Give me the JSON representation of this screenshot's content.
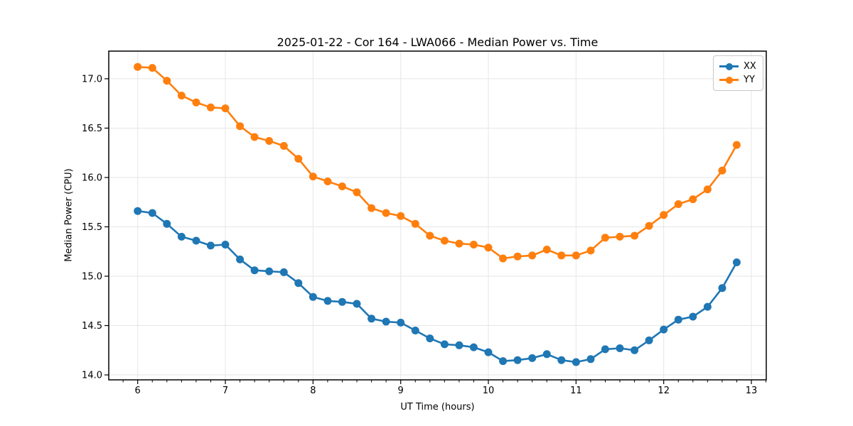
{
  "chart_data": {
    "type": "line",
    "title": "2025-01-22 - Cor 164 - LWA066 - Median Power vs. Time",
    "xlabel": "UT Time (hours)",
    "ylabel": "Median Power (CPU)",
    "x": [
      6.0,
      6.167,
      6.333,
      6.5,
      6.667,
      6.833,
      7.0,
      7.167,
      7.333,
      7.5,
      7.667,
      7.833,
      8.0,
      8.167,
      8.333,
      8.5,
      8.667,
      8.833,
      9.0,
      9.167,
      9.333,
      9.5,
      9.667,
      9.833,
      10.0,
      10.167,
      10.333,
      10.5,
      10.667,
      10.833,
      11.0,
      11.167,
      11.333,
      11.5,
      11.667,
      11.833,
      12.0,
      12.167,
      12.333,
      12.5,
      12.667,
      12.833
    ],
    "series": [
      {
        "name": "XX",
        "color": "#1f77b4",
        "values": [
          15.66,
          15.64,
          15.53,
          15.4,
          15.36,
          15.31,
          15.32,
          15.17,
          15.06,
          15.05,
          15.04,
          14.93,
          14.79,
          14.75,
          14.74,
          14.72,
          14.57,
          14.54,
          14.53,
          14.45,
          14.37,
          14.31,
          14.3,
          14.28,
          14.23,
          14.14,
          14.15,
          14.17,
          14.21,
          14.15,
          14.13,
          14.16,
          14.26,
          14.27,
          14.25,
          14.35,
          14.46,
          14.56,
          14.59,
          14.69,
          14.88,
          15.14
        ]
      },
      {
        "name": "YY",
        "color": "#ff7f0e",
        "values": [
          17.12,
          17.11,
          16.98,
          16.83,
          16.76,
          16.71,
          16.7,
          16.52,
          16.41,
          16.37,
          16.32,
          16.19,
          16.01,
          15.96,
          15.91,
          15.85,
          15.69,
          15.64,
          15.61,
          15.53,
          15.41,
          15.36,
          15.33,
          15.32,
          15.29,
          15.18,
          15.2,
          15.21,
          15.27,
          15.21,
          15.21,
          15.26,
          15.39,
          15.4,
          15.41,
          15.51,
          15.62,
          15.73,
          15.78,
          15.88,
          16.07,
          16.33
        ]
      }
    ],
    "xlim": [
      5.67,
      13.17
    ],
    "ylim": [
      13.95,
      17.28
    ],
    "xticks": {
      "values": [
        6,
        7,
        8,
        9,
        10,
        11,
        12,
        13
      ],
      "labels": [
        "6",
        "7",
        "8",
        "9",
        "10",
        "11",
        "12",
        "13"
      ]
    },
    "yticks": {
      "values": [
        14.0,
        14.5,
        15.0,
        15.5,
        16.0,
        16.5,
        17.0
      ],
      "labels": [
        "14.0",
        "14.5",
        "15.0",
        "15.5",
        "16.0",
        "16.5",
        "17.0"
      ]
    },
    "x_minor_step": 0.1666667,
    "grid": true,
    "grid_color": "#e6e6e6",
    "legend_position": "upper right",
    "marker": "o"
  }
}
